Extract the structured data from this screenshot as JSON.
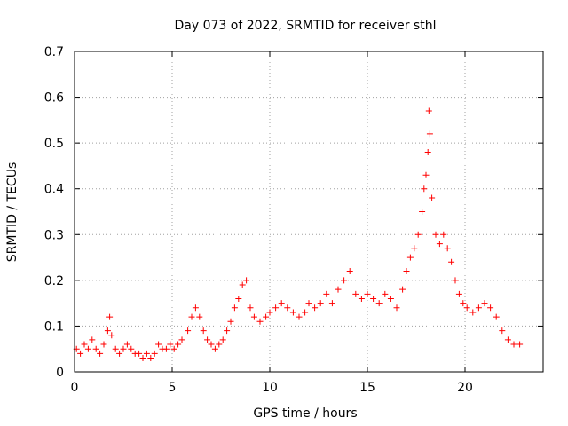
{
  "chart_data": {
    "type": "scatter",
    "title": "Day 073 of 2022, SRMTID for receiver sthl",
    "xlabel": "GPS time / hours",
    "ylabel": "SRMTID / TECUs",
    "xlim": [
      0,
      24
    ],
    "ylim": [
      0,
      0.7
    ],
    "x_ticks": [
      0,
      5,
      10,
      15,
      20
    ],
    "x_tick_labels": [
      "0",
      "5",
      "10",
      "15",
      "20"
    ],
    "y_ticks": [
      0,
      0.1,
      0.2,
      0.3,
      0.4,
      0.5,
      0.6,
      0.7
    ],
    "y_tick_labels": [
      "0",
      "0.1",
      "0.2",
      "0.3",
      "0.4",
      "0.5",
      "0.6",
      "0.7"
    ],
    "grid": true,
    "marker": "+",
    "color": "#ff0000",
    "series": [
      {
        "name": "SRMTID",
        "points": [
          [
            0.1,
            0.05
          ],
          [
            0.3,
            0.04
          ],
          [
            0.5,
            0.06
          ],
          [
            0.7,
            0.05
          ],
          [
            0.9,
            0.07
          ],
          [
            1.1,
            0.05
          ],
          [
            1.3,
            0.04
          ],
          [
            1.5,
            0.06
          ],
          [
            1.7,
            0.09
          ],
          [
            1.8,
            0.12
          ],
          [
            1.9,
            0.08
          ],
          [
            2.1,
            0.05
          ],
          [
            2.3,
            0.04
          ],
          [
            2.5,
            0.05
          ],
          [
            2.7,
            0.06
          ],
          [
            2.9,
            0.05
          ],
          [
            3.1,
            0.04
          ],
          [
            3.3,
            0.04
          ],
          [
            3.5,
            0.03
          ],
          [
            3.7,
            0.04
          ],
          [
            3.9,
            0.03
          ],
          [
            4.1,
            0.04
          ],
          [
            4.3,
            0.06
          ],
          [
            4.5,
            0.05
          ],
          [
            4.7,
            0.05
          ],
          [
            4.9,
            0.06
          ],
          [
            5.1,
            0.05
          ],
          [
            5.3,
            0.06
          ],
          [
            5.5,
            0.07
          ],
          [
            5.8,
            0.09
          ],
          [
            6.0,
            0.12
          ],
          [
            6.2,
            0.14
          ],
          [
            6.4,
            0.12
          ],
          [
            6.6,
            0.09
          ],
          [
            6.8,
            0.07
          ],
          [
            7.0,
            0.06
          ],
          [
            7.2,
            0.05
          ],
          [
            7.4,
            0.06
          ],
          [
            7.6,
            0.07
          ],
          [
            7.8,
            0.09
          ],
          [
            8.0,
            0.11
          ],
          [
            8.2,
            0.14
          ],
          [
            8.4,
            0.16
          ],
          [
            8.6,
            0.19
          ],
          [
            8.8,
            0.2
          ],
          [
            9.0,
            0.14
          ],
          [
            9.2,
            0.12
          ],
          [
            9.5,
            0.11
          ],
          [
            9.8,
            0.12
          ],
          [
            10.0,
            0.13
          ],
          [
            10.3,
            0.14
          ],
          [
            10.6,
            0.15
          ],
          [
            10.9,
            0.14
          ],
          [
            11.2,
            0.13
          ],
          [
            11.5,
            0.12
          ],
          [
            11.8,
            0.13
          ],
          [
            12.0,
            0.15
          ],
          [
            12.3,
            0.14
          ],
          [
            12.6,
            0.15
          ],
          [
            12.9,
            0.17
          ],
          [
            13.2,
            0.15
          ],
          [
            13.5,
            0.18
          ],
          [
            13.8,
            0.2
          ],
          [
            14.1,
            0.22
          ],
          [
            14.4,
            0.17
          ],
          [
            14.7,
            0.16
          ],
          [
            15.0,
            0.17
          ],
          [
            15.3,
            0.16
          ],
          [
            15.6,
            0.15
          ],
          [
            15.9,
            0.17
          ],
          [
            16.2,
            0.16
          ],
          [
            16.5,
            0.14
          ],
          [
            16.8,
            0.18
          ],
          [
            17.0,
            0.22
          ],
          [
            17.2,
            0.25
          ],
          [
            17.4,
            0.27
          ],
          [
            17.6,
            0.3
          ],
          [
            17.8,
            0.35
          ],
          [
            17.9,
            0.4
          ],
          [
            18.0,
            0.43
          ],
          [
            18.1,
            0.48
          ],
          [
            18.15,
            0.57
          ],
          [
            18.2,
            0.52
          ],
          [
            18.3,
            0.38
          ],
          [
            18.5,
            0.3
          ],
          [
            18.7,
            0.28
          ],
          [
            18.9,
            0.3
          ],
          [
            19.1,
            0.27
          ],
          [
            19.3,
            0.24
          ],
          [
            19.5,
            0.2
          ],
          [
            19.7,
            0.17
          ],
          [
            19.9,
            0.15
          ],
          [
            20.1,
            0.14
          ],
          [
            20.4,
            0.13
          ],
          [
            20.7,
            0.14
          ],
          [
            21.0,
            0.15
          ],
          [
            21.3,
            0.14
          ],
          [
            21.6,
            0.12
          ],
          [
            21.9,
            0.09
          ],
          [
            22.2,
            0.07
          ],
          [
            22.5,
            0.06
          ],
          [
            22.8,
            0.06
          ]
        ]
      }
    ]
  }
}
